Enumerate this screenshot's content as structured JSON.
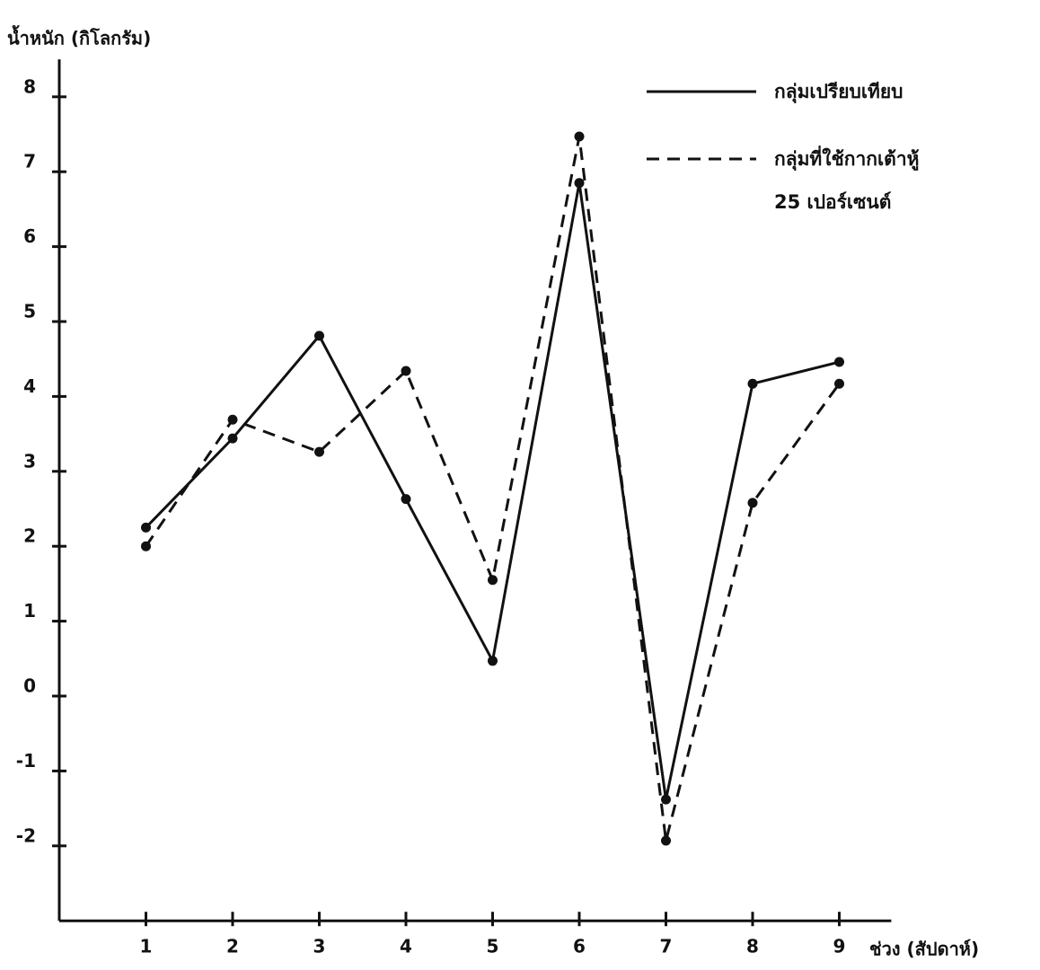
{
  "chart_data": {
    "type": "line",
    "y_label": "น้ำหนัก (กิโลกรัม)",
    "x_label": "ช่วง (สัปดาห์)",
    "x": [
      1,
      2,
      3,
      4,
      5,
      6,
      7,
      8,
      9
    ],
    "series": [
      {
        "name": "กลุ่มเปรียบเทียบ",
        "color": "#111111",
        "line_style": "solid",
        "values": [
          2.25,
          3.44,
          4.81,
          2.63,
          0.47,
          6.85,
          -1.38,
          4.17,
          4.46
        ]
      },
      {
        "name": "กลุ่มที่ใช้กากเต้าหู้\n25 เปอร์เซนต์",
        "color": "#111111",
        "line_style": "dashed",
        "values": [
          2.0,
          3.69,
          3.26,
          4.34,
          1.55,
          7.47,
          -1.93,
          2.58,
          4.17
        ]
      }
    ],
    "xlim": [
      0,
      9.6
    ],
    "xticks": [
      1,
      2,
      3,
      4,
      5,
      6,
      7,
      8,
      9
    ],
    "ylim": [
      -3,
      8.5
    ],
    "yticks": [
      -2,
      -1,
      0,
      1,
      2,
      3,
      4,
      5,
      6,
      7,
      8
    ],
    "grid": false,
    "legend_position": "upper right"
  }
}
